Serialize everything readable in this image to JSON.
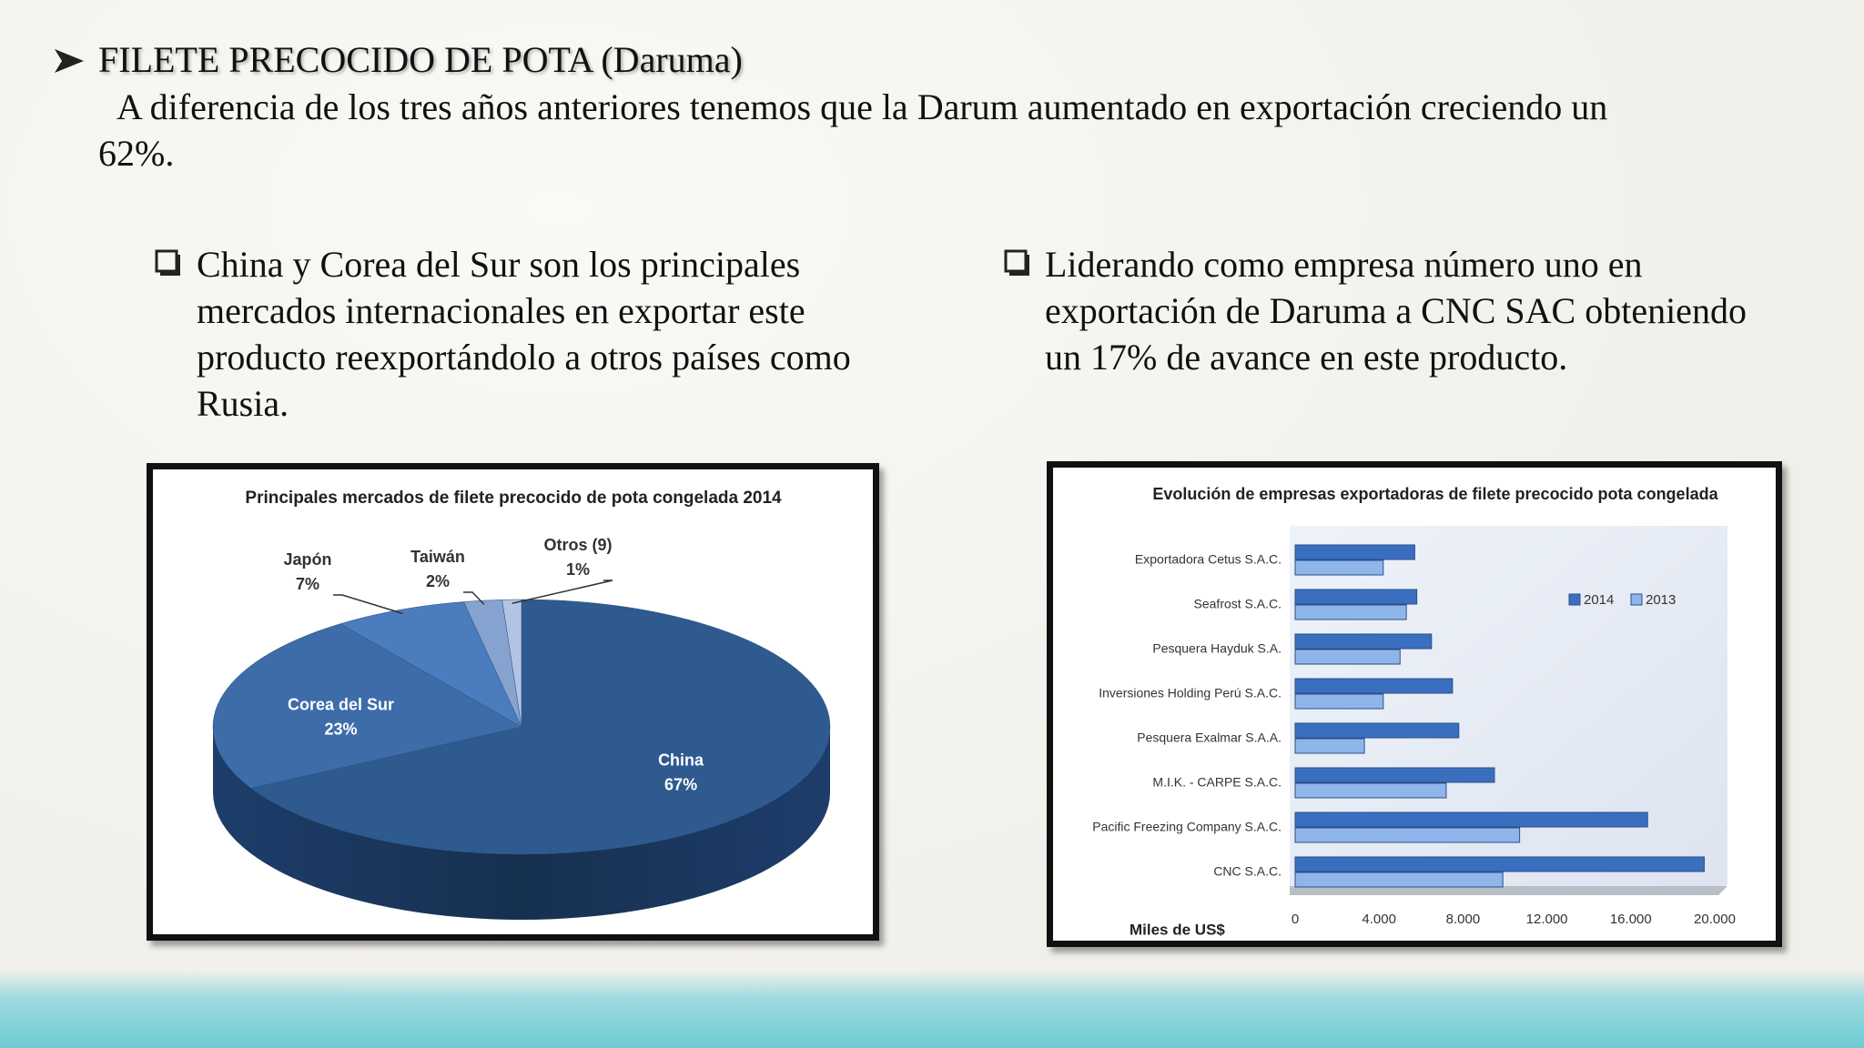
{
  "slide": {
    "title": "FILETE PRECOCIDO DE POTA (Daruma)",
    "paragraph": "A diferencia de los tres años anteriores tenemos que la Darum aumentado en exportación creciendo un 62%.",
    "bullets": [
      "China y Corea del Sur son los principales mercados internacionales en exportar este producto reexportándolo a otros países como Rusia.",
      "Liderando como empresa número uno en exportación de Daruma a CNC SAC obteniendo un 17% de avance en este producto."
    ]
  },
  "chart_data": [
    {
      "type": "pie",
      "title": "Principales mercados de filete precocido de pota congelada 2014",
      "categories": [
        "China",
        "Corea del Sur",
        "Japón",
        "Taiwán",
        "Otros (9)"
      ],
      "values": [
        67,
        23,
        7,
        2,
        1
      ],
      "value_labels": [
        "67%",
        "23%",
        "7%",
        "2%",
        "1%"
      ],
      "colors": [
        "#2f5a8f",
        "#3d6ca9",
        "#4b7cbe",
        "#86a3cf",
        "#b3c3e3"
      ]
    },
    {
      "type": "hbar",
      "title": "Evolución de empresas exportadoras de  filete  precocido pota congelada",
      "x_label": "Miles de US$",
      "categories": [
        "Exportadora Cetus S.A.C.",
        "Seafrost S.A.C.",
        "Pesquera Hayduk S.A.",
        "Inversiones Holding Perú S.A.C.",
        "Pesquera Exalmar S.A.A.",
        "M.I.K. - CARPE S.A.C.",
        "Pacific Freezing Company S.A.C.",
        "CNC S.A.C."
      ],
      "series": [
        {
          "name": "2014",
          "color": "#3a6fc0",
          "values": [
            5700,
            5800,
            6500,
            7500,
            7800,
            9500,
            16800,
            19500
          ]
        },
        {
          "name": "2013",
          "color": "#8fb6ea",
          "values": [
            4200,
            5300,
            5000,
            4200,
            3300,
            7200,
            10700,
            9900
          ]
        }
      ],
      "xlim": [
        0,
        20000
      ],
      "xticks": [
        0,
        {
          "value": 4000,
          "label": "4.000"
        },
        {
          "value": 8000,
          "label": "8.000"
        },
        {
          "value": 12000,
          "label": "12.000"
        },
        {
          "value": 16000,
          "label": "16.000"
        },
        {
          "value": 20000,
          "label": "20.000"
        }
      ]
    }
  ]
}
